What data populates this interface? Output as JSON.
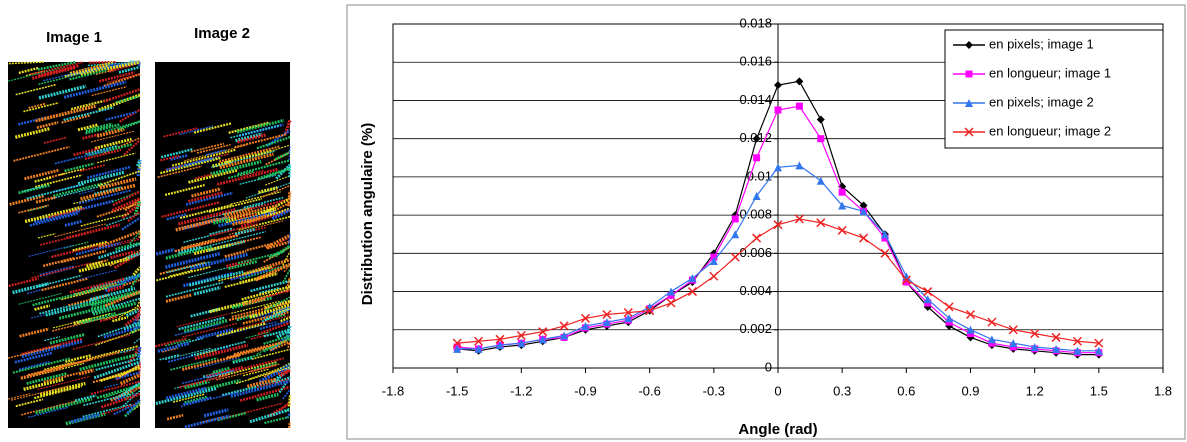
{
  "images": [
    "Image 1",
    "Image 2"
  ],
  "chart_data": {
    "type": "line",
    "x_label": "Angle (rad)",
    "y_label": "Distribution angulaire (%)",
    "x": [
      -1.5,
      -1.4,
      -1.3,
      -1.2,
      -1.1,
      -1.0,
      -0.9,
      -0.8,
      -0.7,
      -0.6,
      -0.5,
      -0.4,
      -0.3,
      -0.2,
      -0.1,
      0,
      0.1,
      0.2,
      0.3,
      0.4,
      0.5,
      0.6,
      0.7,
      0.8,
      0.9,
      1.0,
      1.1,
      1.2,
      1.3,
      1.4,
      1.5
    ],
    "series": [
      {
        "name": "en pixels; image 1",
        "color": "#000000",
        "marker": "diamond",
        "values": [
          0.001,
          0.0009,
          0.0011,
          0.0012,
          0.0014,
          0.0016,
          0.002,
          0.0022,
          0.0024,
          0.003,
          0.0038,
          0.0045,
          0.006,
          0.008,
          0.012,
          0.0148,
          0.015,
          0.013,
          0.0095,
          0.0085,
          0.007,
          0.0045,
          0.0032,
          0.0022,
          0.0016,
          0.0012,
          0.001,
          0.0009,
          0.0008,
          0.0007,
          0.0007
        ]
      },
      {
        "name": "en longueur; image 1",
        "color": "#ff00ff",
        "marker": "square",
        "values": [
          0.0011,
          0.001,
          0.0012,
          0.0013,
          0.0015,
          0.0016,
          0.0021,
          0.0023,
          0.0025,
          0.0031,
          0.0038,
          0.0046,
          0.0058,
          0.0078,
          0.011,
          0.0135,
          0.0137,
          0.012,
          0.0092,
          0.0082,
          0.0068,
          0.0045,
          0.0034,
          0.0024,
          0.0018,
          0.0013,
          0.0011,
          0.001,
          0.0009,
          0.0008,
          0.0008
        ]
      },
      {
        "name": "en pixels; image 2",
        "color": "#3377ee",
        "marker": "triangle",
        "values": [
          0.001,
          0.001,
          0.0012,
          0.0013,
          0.0015,
          0.0017,
          0.0022,
          0.0024,
          0.0026,
          0.0032,
          0.004,
          0.0047,
          0.0056,
          0.007,
          0.009,
          0.0105,
          0.0106,
          0.0098,
          0.0085,
          0.0082,
          0.007,
          0.0048,
          0.0036,
          0.0026,
          0.002,
          0.0015,
          0.0013,
          0.0011,
          0.001,
          0.0009,
          0.0009
        ]
      },
      {
        "name": "en longueur; image 2",
        "color": "#ee2222",
        "marker": "cross",
        "values": [
          0.0013,
          0.0014,
          0.0015,
          0.0017,
          0.0019,
          0.0022,
          0.0026,
          0.0028,
          0.0029,
          0.003,
          0.0034,
          0.004,
          0.0048,
          0.0058,
          0.0068,
          0.0075,
          0.0078,
          0.0076,
          0.0072,
          0.0068,
          0.006,
          0.0046,
          0.004,
          0.0032,
          0.0028,
          0.0024,
          0.002,
          0.0018,
          0.0016,
          0.0014,
          0.0013
        ]
      }
    ],
    "xlim": [
      -1.8,
      1.8
    ],
    "xticks": [
      -1.8,
      -1.5,
      -1.2,
      -0.9,
      -0.6,
      -0.3,
      0,
      0.3,
      0.6,
      0.9,
      1.2,
      1.5,
      1.8
    ],
    "ylim": [
      0,
      0.018
    ],
    "yticks": [
      0,
      0.002,
      0.004,
      0.006,
      0.008,
      0.01,
      0.012,
      0.014,
      0.016,
      0.018
    ],
    "grid": true,
    "legend": "top-right"
  }
}
